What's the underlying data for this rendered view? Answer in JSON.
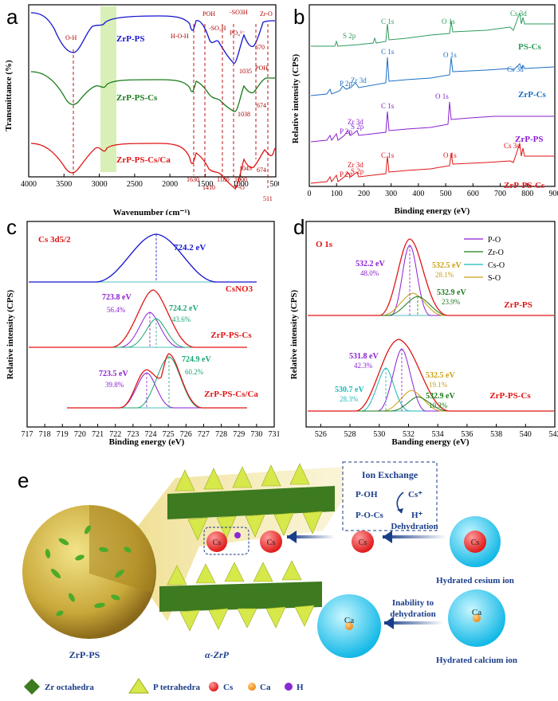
{
  "chart_data": [
    {
      "panel": "a",
      "type": "line",
      "xlabel": "Wavenumber (cm⁻¹)",
      "ylabel": "Transmittance (%)",
      "xlim": [
        4000,
        400
      ],
      "xticks": [
        "4000",
        "3500",
        "3000",
        "2500",
        "2000",
        "1500",
        "1000",
        "500"
      ],
      "series": [
        {
          "name": "ZrP-PS",
          "color": "#1515d0"
        },
        {
          "name": "ZrP-PS-Cs",
          "color": "#1a7a1a"
        },
        {
          "name": "ZrP-PS-Cs/Ca",
          "color": "#e01515"
        }
      ],
      "annotations": [
        "O-H",
        "H-O-H",
        "POH",
        "-SO₃H",
        "-SO3H",
        "PO₄³⁻",
        "Zr-O",
        "670",
        "1035",
        "POH",
        "674",
        "1038",
        "1630",
        "1410",
        "1180",
        "1043",
        "1000",
        "P-O",
        "674",
        "511"
      ]
    },
    {
      "panel": "b",
      "type": "line",
      "xlabel": "Binding energy (eV)",
      "ylabel": "Relative intensity (CPS)",
      "xlim": [
        0,
        900
      ],
      "xticks": [
        "0",
        "100",
        "200",
        "300",
        "400",
        "500",
        "600",
        "700",
        "800",
        "900"
      ],
      "series": [
        {
          "name": "PS-Cs",
          "color": "#2e9a5a"
        },
        {
          "name": "ZrP-Cs",
          "color": "#1a6fc4"
        },
        {
          "name": "ZrP-PS",
          "color": "#8a1fd0"
        },
        {
          "name": "ZrP-PS-Cs",
          "color": "#e01515"
        }
      ],
      "annotations": [
        "S 2p",
        "C 1s",
        "O 1s",
        "Cs 3d",
        "C 1s",
        "O 1s",
        "Cs 3d",
        "P 2p",
        "Zr 3d",
        "Zr 3d",
        "P 2p",
        "S 2p",
        "C 1s",
        "O 1s",
        "C 1s",
        "Zr 3d",
        "P 2p",
        "S 2p",
        "O 1s",
        "Cs 3d"
      ]
    },
    {
      "panel": "c",
      "type": "line",
      "title": "Cs 3d5/2",
      "xlabel": "Binding energy (eV)",
      "ylabel": "Relative intensity (CPS)",
      "xlim": [
        717,
        731
      ],
      "xticks": [
        "717",
        "718",
        "719",
        "720",
        "721",
        "722",
        "723",
        "724",
        "725",
        "726",
        "727",
        "728",
        "729",
        "730",
        "731"
      ],
      "spectra": [
        {
          "name": "CsNO3",
          "peaks": [
            {
              "center": 724.2,
              "label": "724.2 eV"
            }
          ]
        },
        {
          "name": "ZrP-PS-Cs",
          "peaks": [
            {
              "center": 723.8,
              "label": "723.8 eV",
              "pct": "56.4%"
            },
            {
              "center": 724.2,
              "label": "724.2 eV",
              "pct": "43.6%"
            }
          ]
        },
        {
          "name": "ZrP-PS-Cs/Ca",
          "peaks": [
            {
              "center": 723.5,
              "label": "723.5 eV",
              "pct": "39.8%"
            },
            {
              "center": 724.9,
              "label": "724.9 eV",
              "pct": "60.2%"
            }
          ]
        }
      ]
    },
    {
      "panel": "d",
      "type": "line",
      "title": "O 1s",
      "xlabel": "Banding energy (eV)",
      "ylabel": "Relative intensity (CPS)",
      "xlim": [
        525,
        542
      ],
      "xticks": [
        "526",
        "528",
        "530",
        "532",
        "534",
        "536",
        "538",
        "540",
        "542"
      ],
      "legend": [
        "P-O",
        "Zr-O",
        "Cs-O",
        "S-O"
      ],
      "spectra": [
        {
          "name": "ZrP-PS",
          "peaks": [
            {
              "center": 532.2,
              "label": "532.2 eV",
              "pct": "48.0%"
            },
            {
              "center": 532.5,
              "label": "532.5 eV",
              "pct": "28.1%"
            },
            {
              "center": 532.9,
              "label": "532.9 eV",
              "pct": "23.9%"
            }
          ]
        },
        {
          "name": "ZrP-PS-Cs",
          "peaks": [
            {
              "center": 531.8,
              "label": "531.8 eV",
              "pct": "42.3%"
            },
            {
              "center": 530.7,
              "label": "530.7 eV",
              "pct": "28.3%"
            },
            {
              "center": 532.5,
              "label": "532.5 eV",
              "pct": "19.1%"
            },
            {
              "center": 532.9,
              "label": "532.9 eV",
              "pct": "10.3%"
            }
          ]
        }
      ]
    }
  ],
  "panel_e": {
    "ion_exchange_title": "Ion Exchange",
    "poh": "P-OH",
    "pocs": "P-O-Cs",
    "cs_plus": "Cs⁺",
    "h_plus": "H⁺",
    "dehydration": "Dehydration",
    "hydrated_cs": "Hydrated cesium ion",
    "inability_1": "Inability to",
    "inability_2": "dehydration",
    "hydrated_ca": "Hydrated calcium ion",
    "zrp_ps": "ZrP-PS",
    "alpha_zrp": "α-ZrP",
    "cs": "Cs",
    "ca": "Ca",
    "legend_zr": "Zr octahedra",
    "legend_p": "P tetrahedra",
    "legend_cs": "Cs",
    "legend_ca": "Ca",
    "legend_h": "H"
  },
  "panel_labels": [
    "a",
    "b",
    "c",
    "d",
    "e"
  ]
}
